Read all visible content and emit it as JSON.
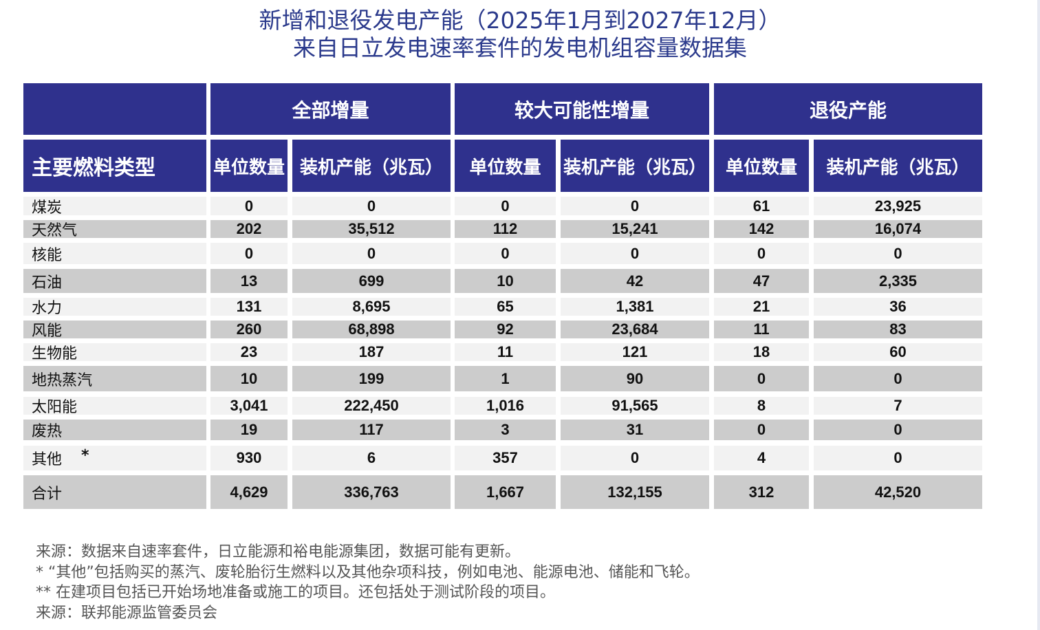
{
  "title": {
    "line1": "新增和退役发电产能（2025年1月到2027年12月）",
    "line2": "来自日立发电速率套件的发电机组容量数据集"
  },
  "colors": {
    "header_bg": "#2f318d",
    "title": "#2b3a8c",
    "row_light": "#f2f2f2",
    "row_dark": "#cccccc"
  },
  "chart_data": {
    "type": "table",
    "title": "新增和退役发电产能（2025年1月到2027年12月）来自日立发电速率套件的发电机组容量数据集",
    "group_headers": [
      "全部增量",
      "较大可能性增量",
      "退役产能"
    ],
    "first_column_header": "主要燃料类型",
    "sub_headers": [
      "单位数量",
      "装机产能（兆瓦）",
      "单位数量",
      "装机产能（兆瓦）",
      "单位数量",
      "装机产能（兆瓦）"
    ],
    "rows": [
      {
        "label": "煤炭",
        "values": [
          "0",
          "0",
          "0",
          "0",
          "61",
          "23,925"
        ]
      },
      {
        "label": "天然气",
        "values": [
          "202",
          "35,512",
          "112",
          "15,241",
          "142",
          "16,074"
        ]
      },
      {
        "label": "核能",
        "values": [
          "0",
          "0",
          "0",
          "0",
          "0",
          "0"
        ]
      },
      {
        "label": "石油",
        "values": [
          "13",
          "699",
          "10",
          "42",
          "47",
          "2,335"
        ]
      },
      {
        "label": "水力",
        "values": [
          "131",
          "8,695",
          "65",
          "1,381",
          "21",
          "36"
        ]
      },
      {
        "label": "风能",
        "values": [
          "260",
          "68,898",
          "92",
          "23,684",
          "11",
          "83"
        ]
      },
      {
        "label": "生物能",
        "values": [
          "23",
          "187",
          "11",
          "121",
          "18",
          "60"
        ]
      },
      {
        "label": "地热蒸汽",
        "values": [
          "10",
          "199",
          "1",
          "90",
          "0",
          "0"
        ]
      },
      {
        "label": "太阳能",
        "values": [
          "3,041",
          "222,450",
          "1,016",
          "91,565",
          "8",
          "7"
        ]
      },
      {
        "label": "废热",
        "values": [
          "19",
          "117",
          "3",
          "31",
          "0",
          "0"
        ]
      },
      {
        "label": "其他",
        "marker": "*",
        "values": [
          "930",
          "6",
          "357",
          "0",
          "4",
          "0"
        ]
      },
      {
        "label": "合计",
        "values": [
          "4,629",
          "336,763",
          "1,667",
          "132,155",
          "312",
          "42,520"
        ]
      }
    ]
  },
  "notes": [
    "来源：数据来自速率套件，日立能源和裕电能源集团，数据可能有更新。",
    "* “其他”包括购买的蒸汽、废轮胎衍生燃料以及其他杂项科技，例如电池、能源电池、储能和飞轮。",
    "** 在建项目包括已开始场地准备或施工的项目。还包括处于测试阶段的项目。",
    "来源：联邦能源监管委员会"
  ]
}
